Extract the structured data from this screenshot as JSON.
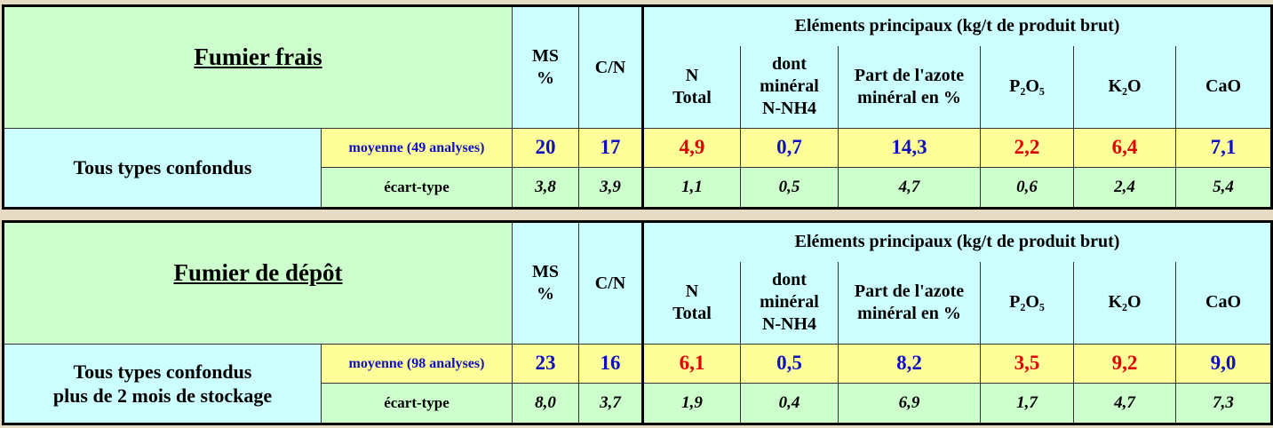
{
  "tables": [
    {
      "title": "Fumier frais",
      "group_header": "Eléments principaux (kg/t de produit brut)",
      "columns": [
        [
          "MS",
          "%"
        ],
        [
          "C/N"
        ],
        [
          "N",
          "Total"
        ],
        [
          "dont",
          "minéral",
          "N-NH4"
        ],
        [
          "Part de l'azote",
          "minéral en %"
        ],
        [
          "P₂O₅"
        ],
        [
          "K₂O"
        ],
        [
          "CaO"
        ]
      ],
      "row_label": [
        "Tous types confondus"
      ],
      "mean_label": "moyenne (49 analyses)",
      "mean": [
        "20",
        "17",
        "4,9",
        "0,7",
        "14,3",
        "2,2",
        "6,4",
        "7,1"
      ],
      "sd_label": "écart-type",
      "sd": [
        "3,8",
        "3,9",
        "1,1",
        "0,5",
        "4,7",
        "0,6",
        "2,4",
        "5,4"
      ]
    },
    {
      "title": "Fumier de dépôt",
      "group_header": "Eléments principaux (kg/t de produit brut)",
      "columns": [
        [
          "MS",
          "%"
        ],
        [
          "C/N"
        ],
        [
          "N",
          "Total"
        ],
        [
          "dont",
          "minéral",
          "N-NH4"
        ],
        [
          "Part de l'azote",
          "minéral en %"
        ],
        [
          "P₂O₅"
        ],
        [
          "K₂O"
        ],
        [
          "CaO"
        ]
      ],
      "row_label": [
        "Tous types confondus",
        "plus de 2 mois de stockage"
      ],
      "mean_label": "moyenne (98 analyses)",
      "mean": [
        "23",
        "16",
        "6,1",
        "0,5",
        "8,2",
        "3,5",
        "9,2",
        "9,0"
      ],
      "sd_label": "écart-type",
      "sd": [
        "8,0",
        "3,7",
        "1,9",
        "0,4",
        "6,9",
        "1,7",
        "4,7",
        "7,3"
      ]
    }
  ]
}
